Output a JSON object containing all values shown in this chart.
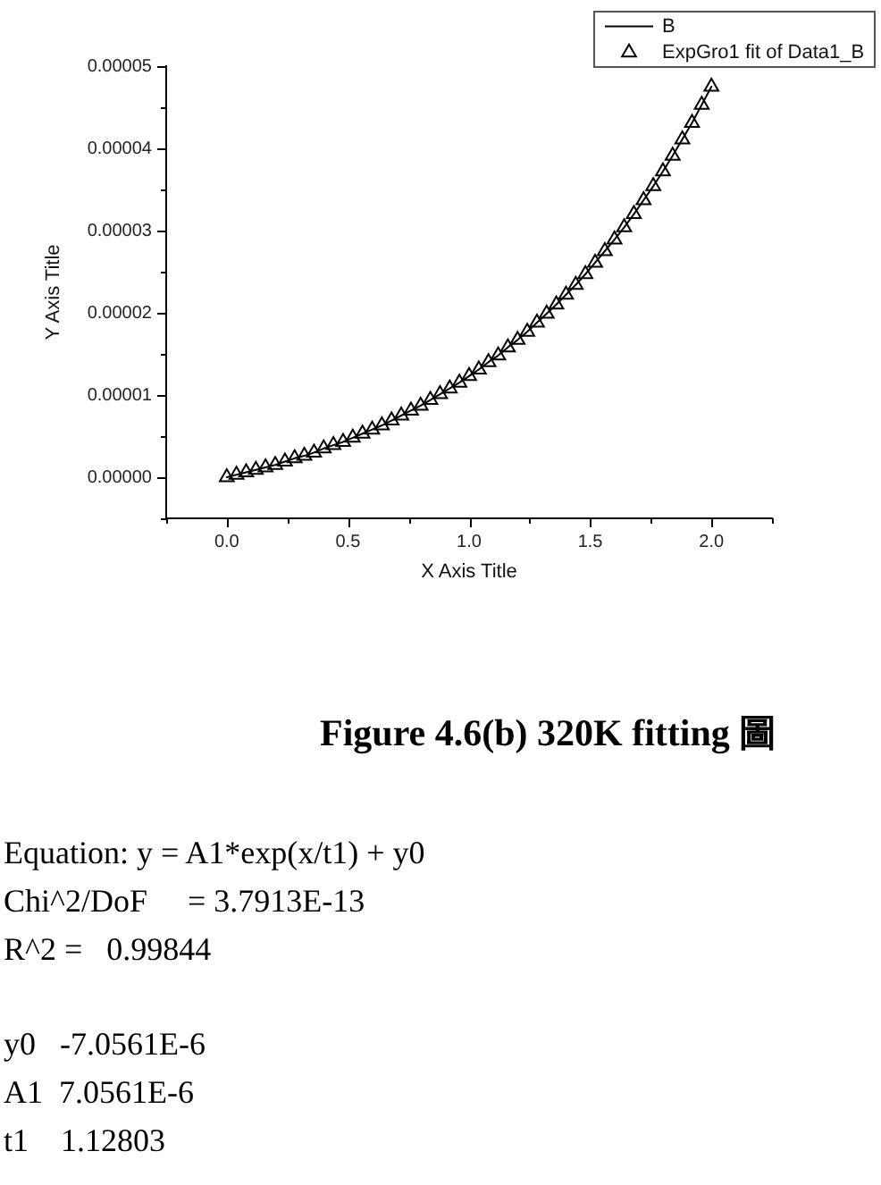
{
  "chart_data": {
    "type": "line",
    "title": "Figure 4.6(b) 320K fitting 圖",
    "xlabel": "X Axis Title",
    "ylabel": "Y Axis Title",
    "x": [
      0,
      0.04,
      0.08,
      0.12,
      0.16,
      0.2,
      0.24,
      0.28,
      0.32,
      0.36,
      0.4,
      0.44,
      0.48,
      0.52,
      0.56,
      0.6,
      0.64,
      0.68,
      0.72,
      0.76,
      0.8,
      0.84,
      0.88,
      0.92,
      0.96,
      1,
      1.04,
      1.08,
      1.12,
      1.16,
      1.2,
      1.24,
      1.28,
      1.32,
      1.36,
      1.4,
      1.44,
      1.48,
      1.52,
      1.56,
      1.6,
      1.64,
      1.68,
      1.72,
      1.76,
      1.8,
      1.84,
      1.88,
      1.92,
      1.96,
      2
    ],
    "series": [
      {
        "name": "B",
        "type": "line",
        "marker": "none",
        "color": "#000000",
        "values": [
          0,
          3e-07,
          6e-07,
          9e-07,
          1.2e-06,
          1.5e-06,
          1.9e-06,
          2.3e-06,
          2.6e-06,
          3e-06,
          3.5e-06,
          3.9e-06,
          4.3e-06,
          4.8e-06,
          5.3e-06,
          5.8e-06,
          6.3e-06,
          6.9e-06,
          7.5e-06,
          8.1e-06,
          8.7e-06,
          9.4e-06,
          1.01e-05,
          1.08e-05,
          1.15e-05,
          1.23e-05,
          1.31e-05,
          1.4e-05,
          1.48e-05,
          1.58e-05,
          1.67e-05,
          1.77e-05,
          1.88e-05,
          1.99e-05,
          2.1e-05,
          2.22e-05,
          2.34e-05,
          2.47e-05,
          2.61e-05,
          2.75e-05,
          2.89e-05,
          3.04e-05,
          3.2e-05,
          3.37e-05,
          3.54e-05,
          3.72e-05,
          3.91e-05,
          4.11e-05,
          4.31e-05,
          4.53e-05,
          4.75e-05
        ]
      },
      {
        "name": "ExpGro1 fit of Data1_B",
        "type": "scatter",
        "marker": "triangle",
        "color": "#000000",
        "values": [
          0,
          3e-07,
          6e-07,
          9e-07,
          1.2e-06,
          1.5e-06,
          1.9e-06,
          2.3e-06,
          2.6e-06,
          3e-06,
          3.5e-06,
          3.9e-06,
          4.3e-06,
          4.8e-06,
          5.3e-06,
          5.8e-06,
          6.3e-06,
          6.9e-06,
          7.5e-06,
          8.1e-06,
          8.7e-06,
          9.4e-06,
          1.01e-05,
          1.08e-05,
          1.15e-05,
          1.23e-05,
          1.31e-05,
          1.4e-05,
          1.48e-05,
          1.58e-05,
          1.67e-05,
          1.77e-05,
          1.88e-05,
          1.99e-05,
          2.1e-05,
          2.22e-05,
          2.34e-05,
          2.47e-05,
          2.61e-05,
          2.75e-05,
          2.89e-05,
          3.04e-05,
          3.2e-05,
          3.37e-05,
          3.54e-05,
          3.72e-05,
          3.91e-05,
          4.11e-05,
          4.31e-05,
          4.53e-05,
          4.75e-05
        ]
      }
    ],
    "xlim": [
      -0.25,
      2.25
    ],
    "xticks": [
      {
        "value": -0.25,
        "label": null
      },
      {
        "value": 0,
        "label": "0.0"
      },
      {
        "value": 0.25,
        "label": null
      },
      0.5,
      {
        "value": 0.75,
        "label": null
      },
      {
        "value": 1,
        "label": "1.0"
      },
      {
        "value": 1.25,
        "label": null
      },
      1.5,
      {
        "value": 1.75,
        "label": null
      },
      {
        "value": 2,
        "label": "2.0"
      },
      {
        "value": 2.25,
        "label": null
      }
    ],
    "ylim": [
      -5e-06,
      5e-05
    ],
    "yticks": [
      {
        "value": -5e-06,
        "label": null
      },
      {
        "value": 0,
        "label": "0.00000"
      },
      {
        "value": 5e-06,
        "label": null
      },
      {
        "value": 1e-05,
        "label": "0.00001"
      },
      {
        "value": 1.5e-05,
        "label": null
      },
      {
        "value": 2e-05,
        "label": "0.00002"
      },
      {
        "value": 2.5e-05,
        "label": null
      },
      {
        "value": 3e-05,
        "label": "0.00003"
      },
      {
        "value": 3.5e-05,
        "label": null
      },
      {
        "value": 4e-05,
        "label": "0.00004"
      },
      {
        "value": 4.5e-05,
        "label": null
      },
      {
        "value": 5e-05,
        "label": "0.00005"
      }
    ],
    "legend": "top right",
    "annotations": [
      "Equation: y = A1*exp(x/t1) + y0",
      "Chi^2/DoF     = 3.7913E-13",
      "R^2 =   0.99844",
      "y0   -7.0561E-6",
      "A1  7.0561E-6",
      "t1    1.12803"
    ]
  }
}
